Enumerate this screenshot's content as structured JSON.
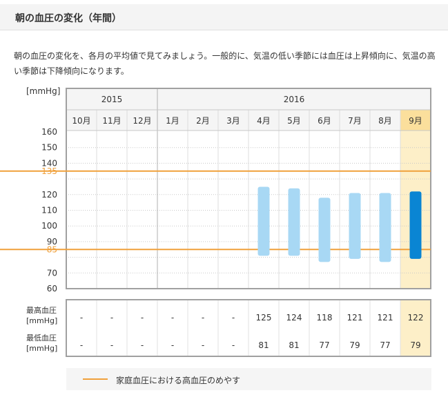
{
  "header": {
    "title": "朝の血圧の変化（年間）"
  },
  "description": "朝の血圧の変化を、各月の平均値で見てみましょう。一般的に、気温の低い季節には血圧は上昇傾向に、気温の高い季節は下降傾向になります。",
  "legend": {
    "label": "家庭血圧における高血圧のめやす"
  },
  "table": {
    "row_labels": [
      {
        "line1": "最高血圧",
        "line2": "[mmHg]"
      },
      {
        "line1": "最低血圧",
        "line2": "[mmHg]"
      }
    ]
  },
  "colors": {
    "bar": "#a8d8f4",
    "bar_highlight": "#0a85d3",
    "threshold": "#f0a03a",
    "highlight_bg": "#fdefc8",
    "highlight_header": "#fbdf9c"
  },
  "chart_data": {
    "type": "bar",
    "ylabel": "[mmHg]",
    "ylim": [
      60,
      160
    ],
    "yticks": [
      "160",
      "150",
      "140",
      "135",
      "120",
      "110",
      "100",
      "90",
      "85",
      "70",
      "60"
    ],
    "years": [
      {
        "label": "2015",
        "span": 3
      },
      {
        "label": "2016",
        "span": 9
      }
    ],
    "categories": [
      "10月",
      "11月",
      "12月",
      "1月",
      "2月",
      "3月",
      "4月",
      "5月",
      "6月",
      "7月",
      "8月",
      "9月"
    ],
    "series": [
      {
        "name": "最高血圧",
        "values": [
          null,
          null,
          null,
          null,
          null,
          null,
          125,
          124,
          118,
          121,
          121,
          122
        ]
      },
      {
        "name": "最低血圧",
        "values": [
          null,
          null,
          null,
          null,
          null,
          null,
          81,
          81,
          77,
          79,
          77,
          79
        ]
      }
    ],
    "display_values": {
      "systolic": [
        "-",
        "-",
        "-",
        "-",
        "-",
        "-",
        "125",
        "124",
        "118",
        "121",
        "121",
        "122"
      ],
      "diastolic": [
        "-",
        "-",
        "-",
        "-",
        "-",
        "-",
        "81",
        "81",
        "77",
        "79",
        "77",
        "79"
      ]
    },
    "thresholds": [
      {
        "label": "135",
        "value": 135
      },
      {
        "label": "85",
        "value": 85
      }
    ],
    "highlight_index": 11,
    "grid": true
  }
}
